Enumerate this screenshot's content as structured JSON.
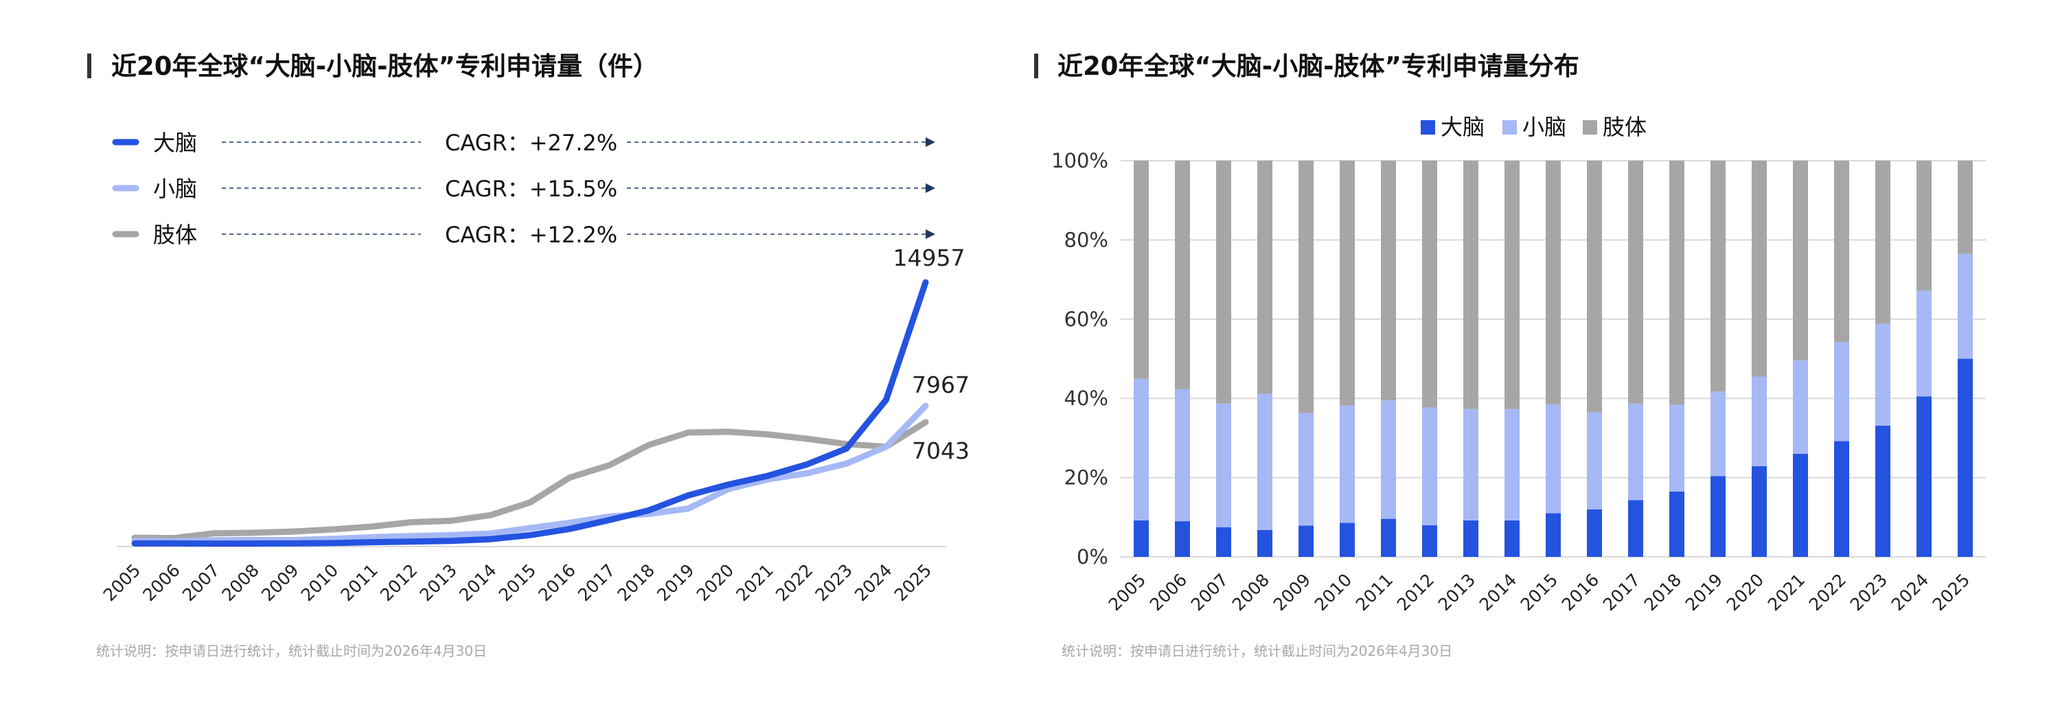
{
  "left": {
    "title": "近20年全球“大脑-小脑-肢体”专利申请量（件）",
    "footnote": "统计说明：按申请日进行统计，统计截止时间为2026年4月30日",
    "cagr_legend": [
      {
        "name": "大脑",
        "cagr": "CAGR：+27.2%"
      },
      {
        "name": "小脑",
        "cagr": "CAGR：+15.5%"
      },
      {
        "name": "肢体",
        "cagr": "CAGR：+12.2%"
      }
    ],
    "end_labels": {
      "brain": "14957",
      "cerebellum": "7967",
      "limb": "7043"
    }
  },
  "right": {
    "title": "近20年全球“大脑-小脑-肢体”专利申请量分布",
    "footnote": "统计说明：按申请日进行统计，统计截止时间为2026年4月30日"
  },
  "colors": {
    "brain": "#2453e0",
    "cerebellum": "#a6b8f5",
    "limb": "#a6a6a6",
    "axis": "#d9d9d9",
    "arrow": "#1f3864"
  },
  "chart_data": [
    {
      "type": "line",
      "title": "近20年全球“大脑-小脑-肢体”专利申请量（件）",
      "categories": [
        "2005",
        "2006",
        "2007",
        "2008",
        "2009",
        "2010",
        "2011",
        "2012",
        "2013",
        "2014",
        "2015",
        "2016",
        "2017",
        "2018",
        "2019",
        "2020",
        "2021",
        "2022",
        "2023",
        "2024",
        "2025"
      ],
      "ylim": [
        0,
        15000
      ],
      "series": [
        {
          "name": "大脑",
          "values": [
            180,
            180,
            170,
            170,
            180,
            200,
            250,
            280,
            320,
            420,
            650,
            1000,
            1500,
            2050,
            2900,
            3500,
            4000,
            4650,
            5550,
            8300,
            14957
          ]
        },
        {
          "name": "小脑",
          "values": [
            330,
            300,
            360,
            370,
            370,
            440,
            530,
            600,
            650,
            740,
            1050,
            1350,
            1700,
            1850,
            2150,
            3250,
            3800,
            4150,
            4700,
            5650,
            7967
          ]
        },
        {
          "name": "肢体",
          "values": [
            500,
            480,
            750,
            780,
            850,
            970,
            1130,
            1380,
            1460,
            1780,
            2500,
            3900,
            4600,
            5750,
            6450,
            6500,
            6350,
            6100,
            5800,
            5650,
            7043
          ]
        }
      ],
      "grid": false
    },
    {
      "type": "bar",
      "stacked": "percent",
      "legend": "top",
      "categories": [
        "2005",
        "2006",
        "2007",
        "2008",
        "2009",
        "2010",
        "2011",
        "2012",
        "2013",
        "2014",
        "2015",
        "2016",
        "2017",
        "2018",
        "2019",
        "2020",
        "2021",
        "2022",
        "2023",
        "2024",
        "2025"
      ],
      "yticks": [
        "0%",
        "20%",
        "40%",
        "60%",
        "80%",
        "100%"
      ],
      "ylim": [
        0,
        100
      ],
      "grid": true,
      "series": [
        {
          "name": "大脑",
          "values": [
            9.2,
            9.0,
            7.5,
            6.8,
            7.9,
            8.6,
            9.6,
            8.0,
            9.2,
            9.2,
            11.0,
            12.0,
            14.3,
            16.5,
            20.4,
            22.9,
            26.0,
            29.2,
            33.1,
            40.5,
            50.0
          ]
        },
        {
          "name": "小脑",
          "values": [
            35.8,
            33.3,
            31.2,
            34.4,
            28.4,
            29.6,
            29.9,
            29.7,
            28.1,
            28.1,
            27.5,
            24.5,
            24.4,
            21.9,
            21.3,
            22.6,
            23.6,
            25.0,
            25.7,
            26.7,
            26.5
          ]
        },
        {
          "name": "肢体",
          "values": [
            55.0,
            57.7,
            61.3,
            58.8,
            63.7,
            61.8,
            60.5,
            62.3,
            62.7,
            62.7,
            61.5,
            63.5,
            61.3,
            61.6,
            58.3,
            54.5,
            50.4,
            45.8,
            41.2,
            32.8,
            23.5
          ]
        }
      ]
    }
  ]
}
